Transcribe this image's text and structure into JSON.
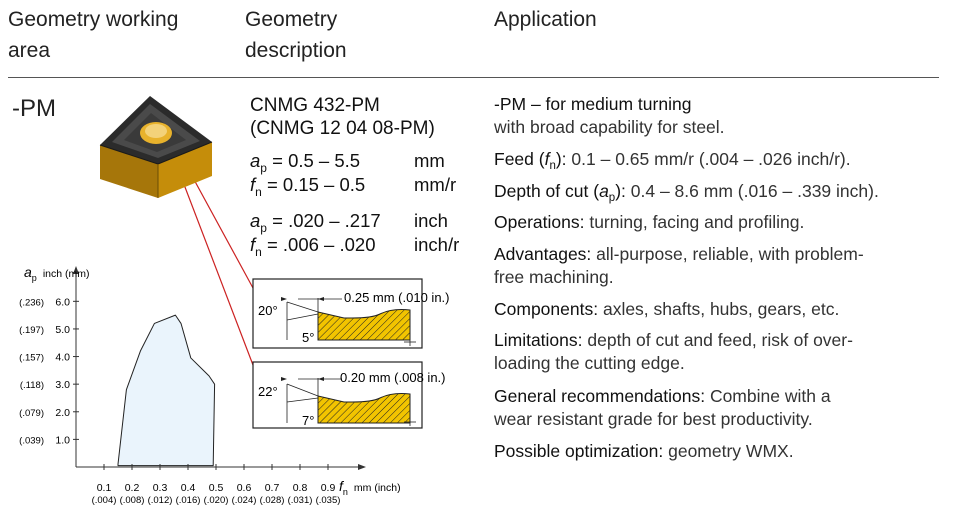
{
  "headers": {
    "working_area_1": "Geometry working",
    "working_area_2": "area",
    "description_1": "Geometry",
    "description_2": "description",
    "application": "Application"
  },
  "geometry_code": "-PM",
  "description": {
    "designation_line1": "CNMG 432-PM",
    "designation_line2": "(CNMG 12 04 08-PM)",
    "metric": {
      "ap_sym": "a",
      "ap_sub": "p",
      "ap_range": " = 0.5 – 5.5",
      "ap_unit": "mm",
      "fn_sym": "f",
      "fn_sub": "n",
      "fn_range": " = 0.15 – 0.5",
      "fn_unit": "mm/r"
    },
    "inch": {
      "ap_sym": "a",
      "ap_sub": "p",
      "ap_range": " = .020 – .217",
      "ap_unit": "inch",
      "fn_sym": "f",
      "fn_sub": "n",
      "fn_range": " = .006 – .020",
      "fn_unit": "inch/r"
    }
  },
  "edge_profiles": [
    {
      "land": "0.25 mm (.010 in.)",
      "rake_angle": "20°",
      "land_angle": "5°"
    },
    {
      "land": "0.20 mm (.008 in.)",
      "rake_angle": "22°",
      "land_angle": "7°"
    }
  ],
  "application": {
    "title": "-PM – for medium turning",
    "title_cont": "with broad capability for steel.",
    "feed_label": "Feed (",
    "feed_sym": "f",
    "feed_sub": "n",
    "feed_label_end": "):",
    "feed_value": " 0.1 – 0.65 mm/r (.004 – .026 inch/r).",
    "doc_label": "Depth of cut (",
    "doc_sym": "a",
    "doc_sub": "p",
    "doc_label_end": "):",
    "doc_value": " 0.4 – 8.6 mm (.016 – .339 inch).",
    "operations_label": "Operations:",
    "operations_value": " turning, facing and profiling.",
    "advantages_label": "Advantages:",
    "advantages_value_1": " all-purpose, reliable, with problem-",
    "advantages_value_2": "free machining.",
    "components_label": "Components:",
    "components_value": " axles, shafts, hubs, gears, etc.",
    "limitations_label": "Limitations:",
    "limitations_value_1": " depth of cut and feed, risk of over-",
    "limitations_value_2": "loading the cutting edge.",
    "general_label": "General recommendations:",
    "general_value_1": " Combine with a",
    "general_value_2": "wear resistant grade for best productivity.",
    "optimization_label": "Possible optimization:",
    "optimization_value": " geometry WMX."
  },
  "chart_data": {
    "type": "area",
    "xlabel": "mm (inch)",
    "xlabel_symbol": "f",
    "xlabel_sub": "n",
    "ylabel": "inch (mm)",
    "ylabel_symbol": "a",
    "ylabel_sub": "p",
    "x_ticks": [
      {
        "value": 0.1,
        "mm": "0.1",
        "inch": "(.004)"
      },
      {
        "value": 0.2,
        "mm": "0.2",
        "inch": "(.008)"
      },
      {
        "value": 0.3,
        "mm": "0.3",
        "inch": "(.012)"
      },
      {
        "value": 0.4,
        "mm": "0.4",
        "inch": "(.016)"
      },
      {
        "value": 0.5,
        "mm": "0.5",
        "inch": "(.020)"
      },
      {
        "value": 0.6,
        "mm": "0.6",
        "inch": "(.024)"
      },
      {
        "value": 0.7,
        "mm": "0.7",
        "inch": "(.028)"
      },
      {
        "value": 0.8,
        "mm": "0.8",
        "inch": "(.031)"
      },
      {
        "value": 0.9,
        "mm": "0.9",
        "inch": "(.035)"
      }
    ],
    "y_ticks": [
      {
        "value": 1.0,
        "mm": "1.0",
        "inch": "(.039)"
      },
      {
        "value": 2.0,
        "mm": "2.0",
        "inch": "(.079)"
      },
      {
        "value": 3.0,
        "mm": "3.0",
        "inch": "(.118)"
      },
      {
        "value": 4.0,
        "mm": "4.0",
        "inch": "(.157)"
      },
      {
        "value": 5.0,
        "mm": "5.0",
        "inch": "(.197)"
      },
      {
        "value": 6.0,
        "mm": "6.0",
        "inch": "(.236)"
      }
    ],
    "xlim": [
      0,
      1.0
    ],
    "ylim": [
      0,
      6.7
    ],
    "region": [
      [
        0.15,
        0.1
      ],
      [
        0.18,
        2.8
      ],
      [
        0.23,
        4.2
      ],
      [
        0.28,
        5.2
      ],
      [
        0.355,
        5.5
      ],
      [
        0.375,
        5.2
      ],
      [
        0.41,
        3.95
      ],
      [
        0.475,
        3.3
      ],
      [
        0.495,
        3.0
      ],
      [
        0.49,
        0.05
      ],
      [
        0.15,
        0.05
      ]
    ],
    "region_color": "#eaf4fc",
    "grid": false
  },
  "colors": {
    "insert_gold": "#d49a0a",
    "profile_hatch": "#f2c400",
    "leader_red": "#cc2222",
    "rule": "#555555"
  }
}
